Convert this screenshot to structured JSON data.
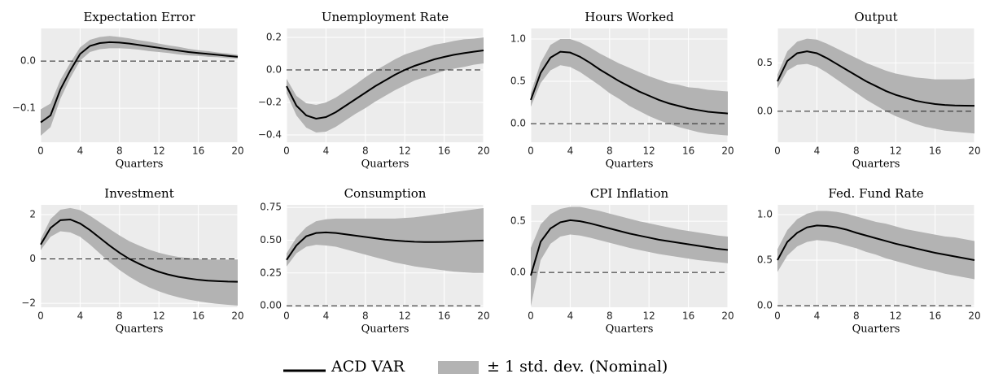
{
  "legend": {
    "entries": [
      "ACD VAR",
      "± 1 std. dev. (Nominal)"
    ]
  },
  "chart_data": [
    {
      "type": "line",
      "title": "Expectation Error",
      "xlabel": "Quarters",
      "x": [
        0,
        1,
        2,
        3,
        4,
        5,
        6,
        7,
        8,
        9,
        10,
        11,
        12,
        13,
        14,
        15,
        16,
        17,
        18,
        19,
        20
      ],
      "xlim": [
        0,
        20
      ],
      "xticks": [
        0,
        4,
        8,
        12,
        16,
        20
      ],
      "ylim": [
        -0.172,
        0.069
      ],
      "yticks": [
        {
          "value": -0.1,
          "label": "−0.1"
        },
        {
          "value": 0,
          "label": "0.0"
        }
      ],
      "hline": 0,
      "grid": true,
      "series": [
        {
          "color": "#000000",
          "values": [
            -0.13,
            -0.115,
            -0.06,
            -0.02,
            0.015,
            0.032,
            0.038,
            0.04,
            0.039,
            0.037,
            0.034,
            0.031,
            0.028,
            0.025,
            0.022,
            0.019,
            0.017,
            0.015,
            0.013,
            0.011,
            0.009
          ]
        }
      ],
      "band": {
        "color": "#b3b3b3",
        "lower": [
          -0.158,
          -0.14,
          -0.08,
          -0.036,
          0.001,
          0.019,
          0.025,
          0.027,
          0.027,
          0.026,
          0.024,
          0.021,
          0.019,
          0.017,
          0.014,
          0.012,
          0.011,
          0.009,
          0.008,
          0.006,
          0.005
        ],
        "upper": [
          -0.102,
          -0.09,
          -0.04,
          -0.004,
          0.029,
          0.045,
          0.051,
          0.053,
          0.051,
          0.048,
          0.044,
          0.041,
          0.037,
          0.033,
          0.03,
          0.026,
          0.023,
          0.021,
          0.018,
          0.016,
          0.013
        ]
      }
    },
    {
      "type": "line",
      "title": "Unemployment Rate",
      "xlabel": "Quarters",
      "x": [
        0,
        1,
        2,
        3,
        4,
        5,
        6,
        7,
        8,
        9,
        10,
        11,
        12,
        13,
        14,
        15,
        16,
        17,
        18,
        19,
        20
      ],
      "xlim": [
        0,
        20
      ],
      "xticks": [
        0,
        4,
        8,
        12,
        16,
        20
      ],
      "ylim": [
        -0.445,
        0.255
      ],
      "yticks": [
        {
          "value": -0.4,
          "label": "−0.4"
        },
        {
          "value": -0.2,
          "label": "−0.2"
        },
        {
          "value": 0,
          "label": "0.0"
        },
        0.2
      ],
      "hline": 0,
      "grid": true,
      "series": [
        {
          "color": "#000000",
          "values": [
            -0.1,
            -0.22,
            -0.28,
            -0.3,
            -0.29,
            -0.26,
            -0.22,
            -0.18,
            -0.14,
            -0.1,
            -0.065,
            -0.03,
            0.0,
            0.025,
            0.045,
            0.065,
            0.08,
            0.093,
            0.103,
            0.112,
            0.12
          ]
        }
      ],
      "band": {
        "color": "#b3b3b3",
        "lower": [
          -0.145,
          -0.28,
          -0.355,
          -0.385,
          -0.38,
          -0.35,
          -0.31,
          -0.27,
          -0.235,
          -0.195,
          -0.16,
          -0.125,
          -0.095,
          -0.065,
          -0.045,
          -0.025,
          -0.005,
          0.008,
          0.018,
          0.032,
          0.04
        ],
        "upper": [
          -0.055,
          -0.16,
          -0.205,
          -0.215,
          -0.2,
          -0.17,
          -0.13,
          -0.09,
          -0.045,
          -0.005,
          0.03,
          0.065,
          0.095,
          0.115,
          0.135,
          0.155,
          0.165,
          0.178,
          0.188,
          0.192,
          0.2
        ]
      }
    },
    {
      "type": "line",
      "title": "Hours Worked",
      "xlabel": "Quarters",
      "x": [
        0,
        1,
        2,
        3,
        4,
        5,
        6,
        7,
        8,
        9,
        10,
        11,
        12,
        13,
        14,
        15,
        16,
        17,
        18,
        19,
        20
      ],
      "xlim": [
        0,
        20
      ],
      "xticks": [
        0,
        4,
        8,
        12,
        16,
        20
      ],
      "ylim": [
        -0.22,
        1.125
      ],
      "yticks": [
        {
          "value": 0,
          "label": "0.0"
        },
        0.5,
        {
          "value": 1,
          "label": "1.0"
        }
      ],
      "hline": 0,
      "grid": true,
      "series": [
        {
          "color": "#000000",
          "values": [
            0.28,
            0.6,
            0.78,
            0.85,
            0.84,
            0.79,
            0.72,
            0.64,
            0.57,
            0.5,
            0.44,
            0.38,
            0.33,
            0.28,
            0.24,
            0.21,
            0.18,
            0.16,
            0.14,
            0.13,
            0.12
          ]
        }
      ],
      "band": {
        "color": "#b3b3b3",
        "lower": [
          0.2,
          0.48,
          0.63,
          0.69,
          0.67,
          0.61,
          0.53,
          0.45,
          0.36,
          0.29,
          0.21,
          0.15,
          0.09,
          0.04,
          0.0,
          -0.04,
          -0.07,
          -0.1,
          -0.12,
          -0.13,
          -0.14
        ],
        "upper": [
          0.36,
          0.72,
          0.93,
          1.0,
          1.0,
          0.96,
          0.9,
          0.83,
          0.77,
          0.71,
          0.66,
          0.61,
          0.56,
          0.52,
          0.48,
          0.46,
          0.43,
          0.42,
          0.4,
          0.39,
          0.38
        ]
      }
    },
    {
      "type": "line",
      "title": "Output",
      "xlabel": "Quarters",
      "x": [
        0,
        1,
        2,
        3,
        4,
        5,
        6,
        7,
        8,
        9,
        10,
        11,
        12,
        13,
        14,
        15,
        16,
        17,
        18,
        19,
        20
      ],
      "xlim": [
        0,
        20
      ],
      "xticks": [
        0,
        4,
        8,
        12,
        16,
        20
      ],
      "ylim": [
        -0.32,
        0.856
      ],
      "yticks": [
        {
          "value": 0,
          "label": "0.0"
        },
        0.5
      ],
      "hline": 0,
      "grid": true,
      "series": [
        {
          "color": "#000000",
          "values": [
            0.31,
            0.52,
            0.6,
            0.62,
            0.6,
            0.55,
            0.49,
            0.43,
            0.37,
            0.31,
            0.26,
            0.21,
            0.17,
            0.14,
            0.11,
            0.09,
            0.075,
            0.065,
            0.06,
            0.058,
            0.057
          ]
        }
      ],
      "band": {
        "color": "#b3b3b3",
        "lower": [
          0.24,
          0.42,
          0.48,
          0.49,
          0.46,
          0.4,
          0.33,
          0.26,
          0.19,
          0.12,
          0.06,
          0.0,
          -0.05,
          -0.09,
          -0.13,
          -0.16,
          -0.18,
          -0.2,
          -0.21,
          -0.22,
          -0.23
        ],
        "upper": [
          0.38,
          0.62,
          0.72,
          0.75,
          0.74,
          0.7,
          0.65,
          0.6,
          0.55,
          0.5,
          0.46,
          0.42,
          0.39,
          0.37,
          0.35,
          0.34,
          0.33,
          0.33,
          0.33,
          0.33,
          0.34
        ]
      }
    },
    {
      "type": "line",
      "title": "Investment",
      "xlabel": "Quarters",
      "x": [
        0,
        1,
        2,
        3,
        4,
        5,
        6,
        7,
        8,
        9,
        10,
        11,
        12,
        13,
        14,
        15,
        16,
        17,
        18,
        19,
        20
      ],
      "xlim": [
        0,
        20
      ],
      "xticks": [
        0,
        4,
        8,
        12,
        16,
        20
      ],
      "ylim": [
        -2.18,
        2.44
      ],
      "yticks": [
        {
          "value": -2,
          "label": "−2"
        },
        0,
        2
      ],
      "hline": 0,
      "grid": true,
      "series": [
        {
          "color": "#000000",
          "values": [
            0.65,
            1.4,
            1.75,
            1.78,
            1.6,
            1.3,
            0.95,
            0.6,
            0.28,
            0.0,
            -0.22,
            -0.42,
            -0.58,
            -0.71,
            -0.81,
            -0.88,
            -0.94,
            -0.98,
            -1.0,
            -1.02,
            -1.03
          ]
        }
      ],
      "band": {
        "color": "#b3b3b3",
        "lower": [
          0.4,
          1.0,
          1.25,
          1.2,
          1.0,
          0.65,
          0.25,
          -0.15,
          -0.5,
          -0.8,
          -1.06,
          -1.28,
          -1.46,
          -1.61,
          -1.73,
          -1.83,
          -1.91,
          -1.98,
          -2.03,
          -2.07,
          -2.1
        ],
        "upper": [
          0.9,
          1.8,
          2.22,
          2.3,
          2.2,
          1.95,
          1.65,
          1.35,
          1.06,
          0.8,
          0.6,
          0.42,
          0.28,
          0.17,
          0.09,
          0.04,
          0.0,
          -0.02,
          -0.03,
          -0.03,
          -0.02
        ]
      }
    },
    {
      "type": "line",
      "title": "Consumption",
      "xlabel": "Quarters",
      "x": [
        0,
        1,
        2,
        3,
        4,
        5,
        6,
        7,
        8,
        9,
        10,
        11,
        12,
        13,
        14,
        15,
        16,
        17,
        18,
        19,
        20
      ],
      "xlim": [
        0,
        20
      ],
      "xticks": [
        0,
        4,
        8,
        12,
        16,
        20
      ],
      "ylim": [
        -0.012,
        0.77
      ],
      "yticks": [
        {
          "value": 0,
          "label": "0.00"
        },
        0.25,
        {
          "value": 0.5,
          "label": "0.50"
        },
        0.75
      ],
      "hline": 0,
      "grid": true,
      "series": [
        {
          "color": "#000000",
          "values": [
            0.35,
            0.46,
            0.53,
            0.555,
            0.56,
            0.555,
            0.545,
            0.535,
            0.525,
            0.515,
            0.505,
            0.498,
            0.492,
            0.488,
            0.486,
            0.486,
            0.487,
            0.489,
            0.492,
            0.495,
            0.498
          ]
        }
      ],
      "band": {
        "color": "#b3b3b3",
        "lower": [
          0.3,
          0.4,
          0.45,
          0.465,
          0.46,
          0.45,
          0.43,
          0.41,
          0.39,
          0.37,
          0.35,
          0.33,
          0.315,
          0.3,
          0.29,
          0.28,
          0.27,
          0.26,
          0.255,
          0.25,
          0.25
        ],
        "upper": [
          0.4,
          0.52,
          0.6,
          0.645,
          0.66,
          0.665,
          0.665,
          0.665,
          0.665,
          0.665,
          0.665,
          0.665,
          0.67,
          0.675,
          0.685,
          0.695,
          0.705,
          0.715,
          0.725,
          0.735,
          0.745
        ]
      }
    },
    {
      "type": "line",
      "title": "CPI Inflation",
      "xlabel": "Quarters",
      "x": [
        0,
        1,
        2,
        3,
        4,
        5,
        6,
        7,
        8,
        9,
        10,
        11,
        12,
        13,
        14,
        15,
        16,
        17,
        18,
        19,
        20
      ],
      "xlim": [
        0,
        20
      ],
      "xticks": [
        0,
        4,
        8,
        12,
        16,
        20
      ],
      "ylim": [
        -0.34,
        0.66
      ],
      "yticks": [
        {
          "value": 0,
          "label": "0.0"
        },
        0.5
      ],
      "hline": 0,
      "grid": true,
      "series": [
        {
          "color": "#000000",
          "values": [
            -0.03,
            0.3,
            0.43,
            0.49,
            0.51,
            0.5,
            0.48,
            0.455,
            0.43,
            0.405,
            0.38,
            0.36,
            0.34,
            0.32,
            0.305,
            0.29,
            0.275,
            0.26,
            0.245,
            0.23,
            0.22
          ]
        }
      ],
      "band": {
        "color": "#b3b3b3",
        "lower": [
          -0.33,
          0.12,
          0.28,
          0.35,
          0.37,
          0.36,
          0.34,
          0.315,
          0.29,
          0.265,
          0.24,
          0.22,
          0.2,
          0.18,
          0.165,
          0.15,
          0.135,
          0.12,
          0.11,
          0.1,
          0.09
        ],
        "upper": [
          0.24,
          0.47,
          0.57,
          0.62,
          0.64,
          0.64,
          0.62,
          0.6,
          0.575,
          0.55,
          0.525,
          0.5,
          0.48,
          0.46,
          0.44,
          0.42,
          0.405,
          0.39,
          0.375,
          0.36,
          0.35
        ]
      }
    },
    {
      "type": "line",
      "title": "Fed. Fund Rate",
      "xlabel": "Quarters",
      "x": [
        0,
        1,
        2,
        3,
        4,
        5,
        6,
        7,
        8,
        9,
        10,
        11,
        12,
        13,
        14,
        15,
        16,
        17,
        18,
        19,
        20
      ],
      "xlim": [
        0,
        20
      ],
      "xticks": [
        0,
        4,
        8,
        12,
        16,
        20
      ],
      "ylim": [
        -0.018,
        1.107
      ],
      "yticks": [
        {
          "value": 0,
          "label": "0.0"
        },
        0.5,
        {
          "value": 1,
          "label": "1.0"
        }
      ],
      "hline": 0,
      "grid": true,
      "series": [
        {
          "color": "#000000",
          "values": [
            0.5,
            0.7,
            0.8,
            0.86,
            0.88,
            0.875,
            0.86,
            0.835,
            0.8,
            0.77,
            0.74,
            0.71,
            0.68,
            0.655,
            0.63,
            0.605,
            0.58,
            0.56,
            0.54,
            0.52,
            0.5
          ]
        }
      ],
      "band": {
        "color": "#b3b3b3",
        "lower": [
          0.37,
          0.55,
          0.65,
          0.7,
          0.72,
          0.71,
          0.69,
          0.66,
          0.63,
          0.59,
          0.56,
          0.52,
          0.49,
          0.46,
          0.43,
          0.4,
          0.38,
          0.35,
          0.33,
          0.31,
          0.29
        ],
        "upper": [
          0.62,
          0.83,
          0.95,
          1.01,
          1.04,
          1.04,
          1.03,
          1.01,
          0.98,
          0.95,
          0.92,
          0.9,
          0.87,
          0.84,
          0.82,
          0.8,
          0.78,
          0.76,
          0.75,
          0.73,
          0.71
        ]
      }
    }
  ]
}
